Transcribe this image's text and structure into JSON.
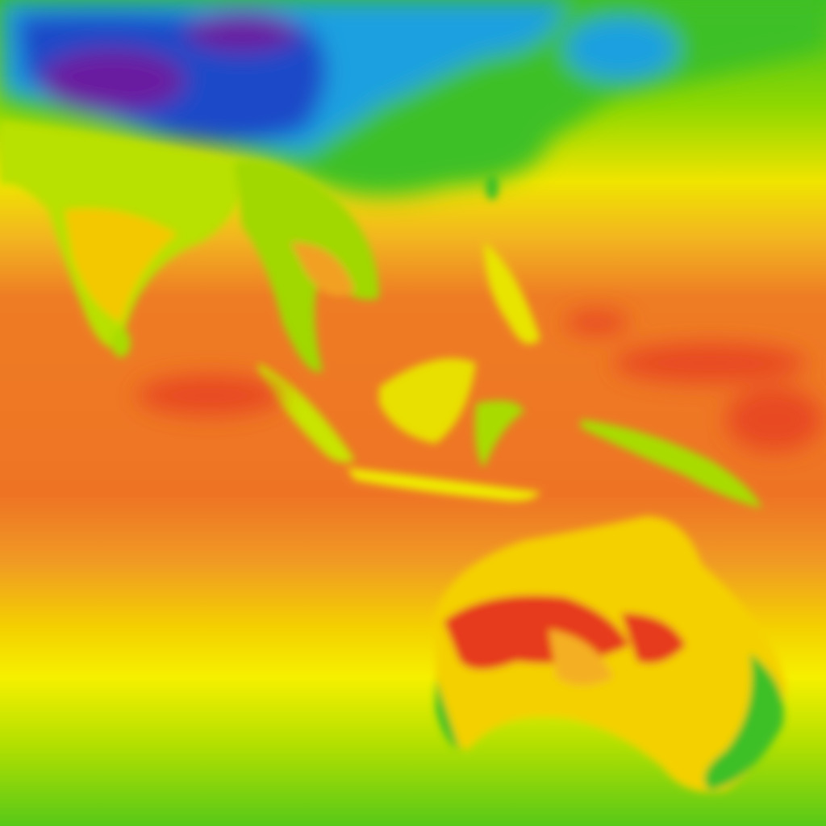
{
  "map": {
    "colors": {
      "coldest": "#6a1aa0",
      "cold": "#1f48c8",
      "cool": "#1aa0e0",
      "mild": "#3cc028",
      "warm_mild": "#a8dc00",
      "warm": "#f4ec00",
      "hot": "#f4b020",
      "hotter": "#ee7424",
      "hottest": "#e42a20"
    }
  }
}
